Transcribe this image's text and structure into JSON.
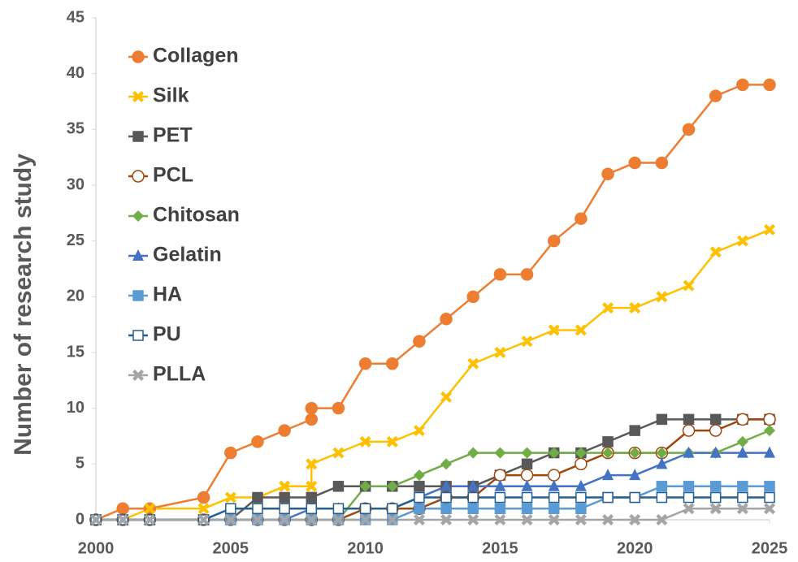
{
  "chart_data": {
    "type": "line",
    "ylabel": "Number of research study",
    "x": [
      2000,
      2001,
      2002,
      2004,
      2005,
      2006,
      2007,
      2008,
      2008,
      2009,
      2010,
      2011,
      2012,
      2013,
      2014,
      2015,
      2016,
      2017,
      2018,
      2019,
      2020,
      2021,
      2022,
      2023,
      2024,
      2025
    ],
    "xlim": [
      2000,
      2025
    ],
    "xticks": [
      2000,
      2005,
      2010,
      2015,
      2020,
      2025
    ],
    "ylim": [
      0,
      45
    ],
    "yticks": [
      0,
      5,
      10,
      15,
      20,
      25,
      30,
      35,
      40,
      45
    ],
    "legend": "upper left",
    "series": [
      {
        "name": "Collagen",
        "color": "#ed7d31",
        "marker": "circle",
        "values": [
          0,
          1,
          1,
          2,
          6,
          7,
          8,
          9,
          10,
          10,
          14,
          14,
          16,
          18,
          20,
          22,
          22,
          25,
          27,
          31,
          32,
          32,
          35,
          38,
          39,
          39
        ]
      },
      {
        "name": "Silk",
        "color": "#ffc000",
        "marker": "x",
        "values": [
          0,
          0,
          1,
          1,
          2,
          2,
          3,
          3,
          5,
          6,
          7,
          7,
          8,
          11,
          14,
          15,
          16,
          17,
          17,
          19,
          19,
          20,
          21,
          24,
          25,
          26
        ]
      },
      {
        "name": "PET",
        "color": "#595959",
        "marker": "square",
        "values": [
          0,
          0,
          0,
          0,
          0,
          2,
          2,
          2,
          2,
          3,
          3,
          3,
          3,
          3,
          3,
          4,
          5,
          6,
          6,
          7,
          8,
          9,
          9,
          9,
          9,
          9
        ]
      },
      {
        "name": "PCL",
        "color": "#9e480e",
        "marker": "open-circle",
        "values": [
          0,
          0,
          0,
          0,
          0,
          0,
          0,
          0,
          0,
          0,
          1,
          1,
          1,
          2,
          2,
          4,
          4,
          4,
          5,
          6,
          6,
          6,
          8,
          8,
          9,
          9
        ]
      },
      {
        "name": "Chitosan",
        "color": "#70ad47",
        "marker": "diamond",
        "values": [
          0,
          0,
          0,
          0,
          0,
          0,
          0,
          0,
          0,
          0,
          3,
          3,
          4,
          5,
          6,
          6,
          6,
          6,
          6,
          6,
          6,
          6,
          6,
          6,
          7,
          8
        ]
      },
      {
        "name": "Gelatin",
        "color": "#4472c4",
        "marker": "triangle",
        "values": [
          0,
          0,
          0,
          0,
          0,
          0,
          0,
          1,
          1,
          1,
          1,
          1,
          2,
          3,
          3,
          3,
          3,
          3,
          3,
          4,
          4,
          5,
          6,
          6,
          6,
          6
        ]
      },
      {
        "name": "HA",
        "color": "#5b9bd5",
        "marker": "square",
        "values": [
          0,
          0,
          0,
          0,
          0,
          0,
          0,
          0,
          0,
          0,
          0,
          0,
          1,
          1,
          1,
          1,
          1,
          1,
          1,
          2,
          2,
          3,
          3,
          3,
          3,
          3
        ]
      },
      {
        "name": "PU",
        "color": "#255e91",
        "marker": "open-square",
        "values": [
          0,
          0,
          0,
          0,
          1,
          1,
          1,
          1,
          1,
          1,
          1,
          1,
          2,
          2,
          2,
          2,
          2,
          2,
          2,
          2,
          2,
          2,
          2,
          2,
          2,
          2
        ]
      },
      {
        "name": "PLLA",
        "color": "#a5a5a5",
        "marker": "x",
        "values": [
          0,
          0,
          0,
          0,
          0,
          0,
          0,
          0,
          0,
          0,
          0,
          0,
          0,
          0,
          0,
          0,
          0,
          0,
          0,
          0,
          0,
          0,
          1,
          1,
          1,
          1
        ]
      }
    ]
  }
}
